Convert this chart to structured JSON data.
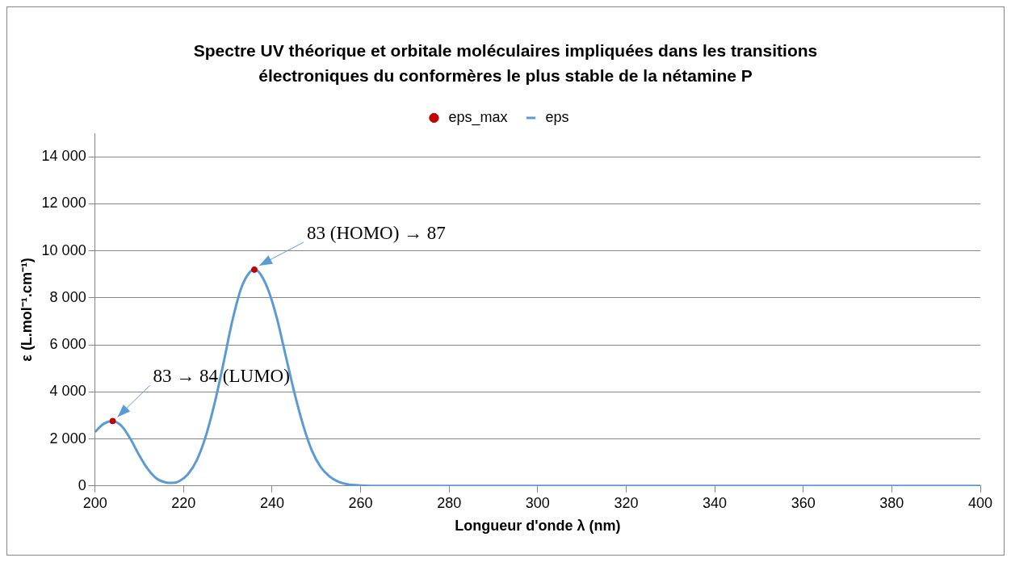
{
  "chart_data": {
    "type": "line",
    "title": "Spectre UV théorique et orbitale moléculaires impliquées dans les transitions électroniques du conformères le plus stable de la nétamine P",
    "xlabel": "Longueur d'onde λ (nm)",
    "ylabel": "ε (L.mol⁻¹.cm⁻¹)",
    "xlim": [
      200,
      400
    ],
    "xticks": [
      200,
      220,
      240,
      260,
      280,
      300,
      320,
      340,
      360,
      380,
      400
    ],
    "ylim": [
      0,
      15000
    ],
    "yticks": [
      0,
      {
        "value": 2000,
        "label": "2 000"
      },
      {
        "value": 4000,
        "label": "4 000"
      },
      {
        "value": 6000,
        "label": "6 000"
      },
      {
        "value": 8000,
        "label": "8 000"
      },
      {
        "value": 10000,
        "label": "10 000"
      },
      {
        "value": 12000,
        "label": "12 000"
      },
      {
        "value": 14000,
        "label": "14 000"
      }
    ],
    "grid": "y",
    "legend": "top",
    "series": [
      {
        "name": "eps_max",
        "type": "scatter",
        "marker": "circle",
        "color": "#c00000",
        "x": [
          204,
          236
        ],
        "values": [
          2760,
          9200
        ]
      },
      {
        "name": "eps",
        "marker": "none",
        "line_style": "solid",
        "color": "#5b9bd5",
        "x": [
          200,
          202,
          204,
          206,
          208,
          210,
          212,
          214,
          216,
          217.5,
          219,
          221,
          223,
          225,
          227,
          229,
          231,
          233,
          235,
          236,
          237,
          239,
          241,
          243,
          245,
          247,
          249,
          251,
          253,
          255,
          257,
          260,
          265,
          280,
          300,
          320,
          340,
          360,
          380,
          400
        ],
        "values": [
          2300,
          2650,
          2760,
          2550,
          2000,
          1300,
          700,
          300,
          150,
          130,
          200,
          500,
          1100,
          2100,
          3500,
          5200,
          7000,
          8400,
          9100,
          9200,
          9100,
          8400,
          7200,
          5600,
          4000,
          2600,
          1500,
          800,
          400,
          180,
          70,
          20,
          0,
          0,
          0,
          0,
          0,
          0,
          0,
          0
        ]
      }
    ],
    "annotations": [
      {
        "text": "83 (HOMO) → 87",
        "x": 236,
        "y": 9200
      },
      {
        "text": "83 → 84 (LUMO)",
        "x": 204,
        "y": 2760
      }
    ]
  }
}
